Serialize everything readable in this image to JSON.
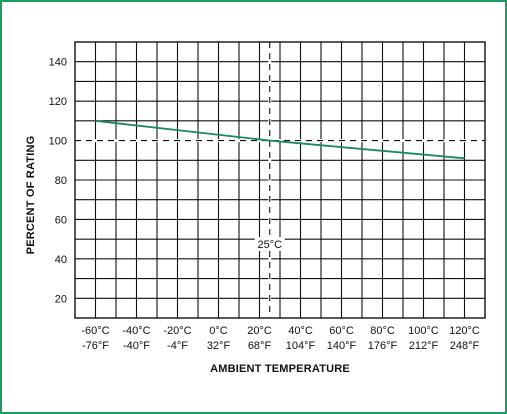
{
  "chart_data": {
    "type": "line",
    "xlabel": "AMBIENT TEMPERATURE",
    "ylabel": "PERCENT OF RATING",
    "xlim": [
      -70,
      130
    ],
    "ylim": [
      10,
      150
    ],
    "grid": true,
    "x_ticks": [
      {
        "value": -60,
        "c": "-60°C",
        "f": "-76°F"
      },
      {
        "value": -40,
        "c": "-40°C",
        "f": "-40°F"
      },
      {
        "value": -20,
        "c": "-20°C",
        "f": "-4°F"
      },
      {
        "value": 0,
        "c": "0°C",
        "f": "32°F"
      },
      {
        "value": 20,
        "c": "20°C",
        "f": "68°F"
      },
      {
        "value": 40,
        "c": "40°C",
        "f": "104°F"
      },
      {
        "value": 60,
        "c": "60°C",
        "f": "140°F"
      },
      {
        "value": 80,
        "c": "80°C",
        "f": "176°F"
      },
      {
        "value": 100,
        "c": "100°C",
        "f": "212°F"
      },
      {
        "value": 120,
        "c": "120°C",
        "f": "248°F"
      }
    ],
    "y_ticks": [
      20,
      40,
      60,
      80,
      100,
      120,
      140
    ],
    "series": [
      {
        "x": [
          -60,
          25,
          120
        ],
        "y": [
          110,
          100,
          91
        ],
        "color": "#1e8a5a"
      }
    ],
    "reference_lines": {
      "horizontal": {
        "y": 100
      },
      "vertical": {
        "x": 25,
        "label": "25°C"
      }
    },
    "frame_color": "#1f9a63"
  }
}
